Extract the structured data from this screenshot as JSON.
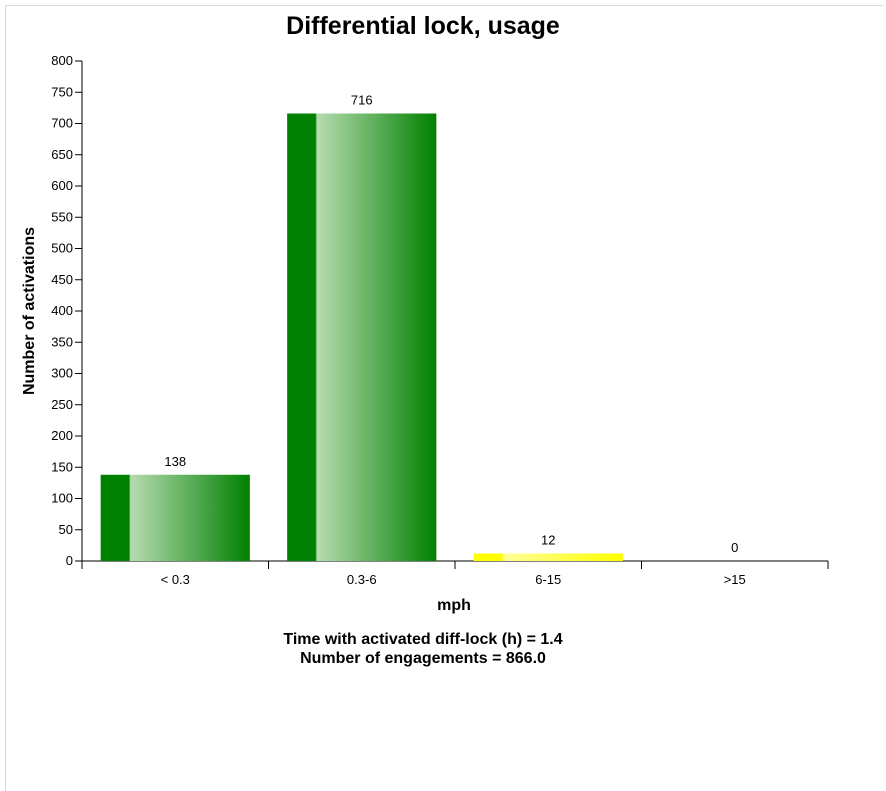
{
  "chart_data": {
    "type": "bar",
    "title": "Differential lock, usage",
    "xlabel": "mph",
    "ylabel": "Number of activations",
    "categories": [
      "< 0.3",
      "0.3-6",
      "6-15",
      ">15"
    ],
    "values": [
      138,
      716,
      12,
      0
    ],
    "data_labels": [
      "138",
      "716",
      "12",
      "0"
    ],
    "bar_colors": [
      "#008000",
      "#008000",
      "#ffff00",
      "#008000"
    ],
    "ylim": [
      0,
      800
    ],
    "yticks": [
      0,
      50,
      100,
      150,
      200,
      250,
      300,
      350,
      400,
      450,
      500,
      550,
      600,
      650,
      700,
      750,
      800
    ],
    "grid": false,
    "legend": "none"
  },
  "summary": {
    "line1": "Time with activated diff-lock (h) = 1.4",
    "line2": "Number of engagements = 866.0"
  }
}
